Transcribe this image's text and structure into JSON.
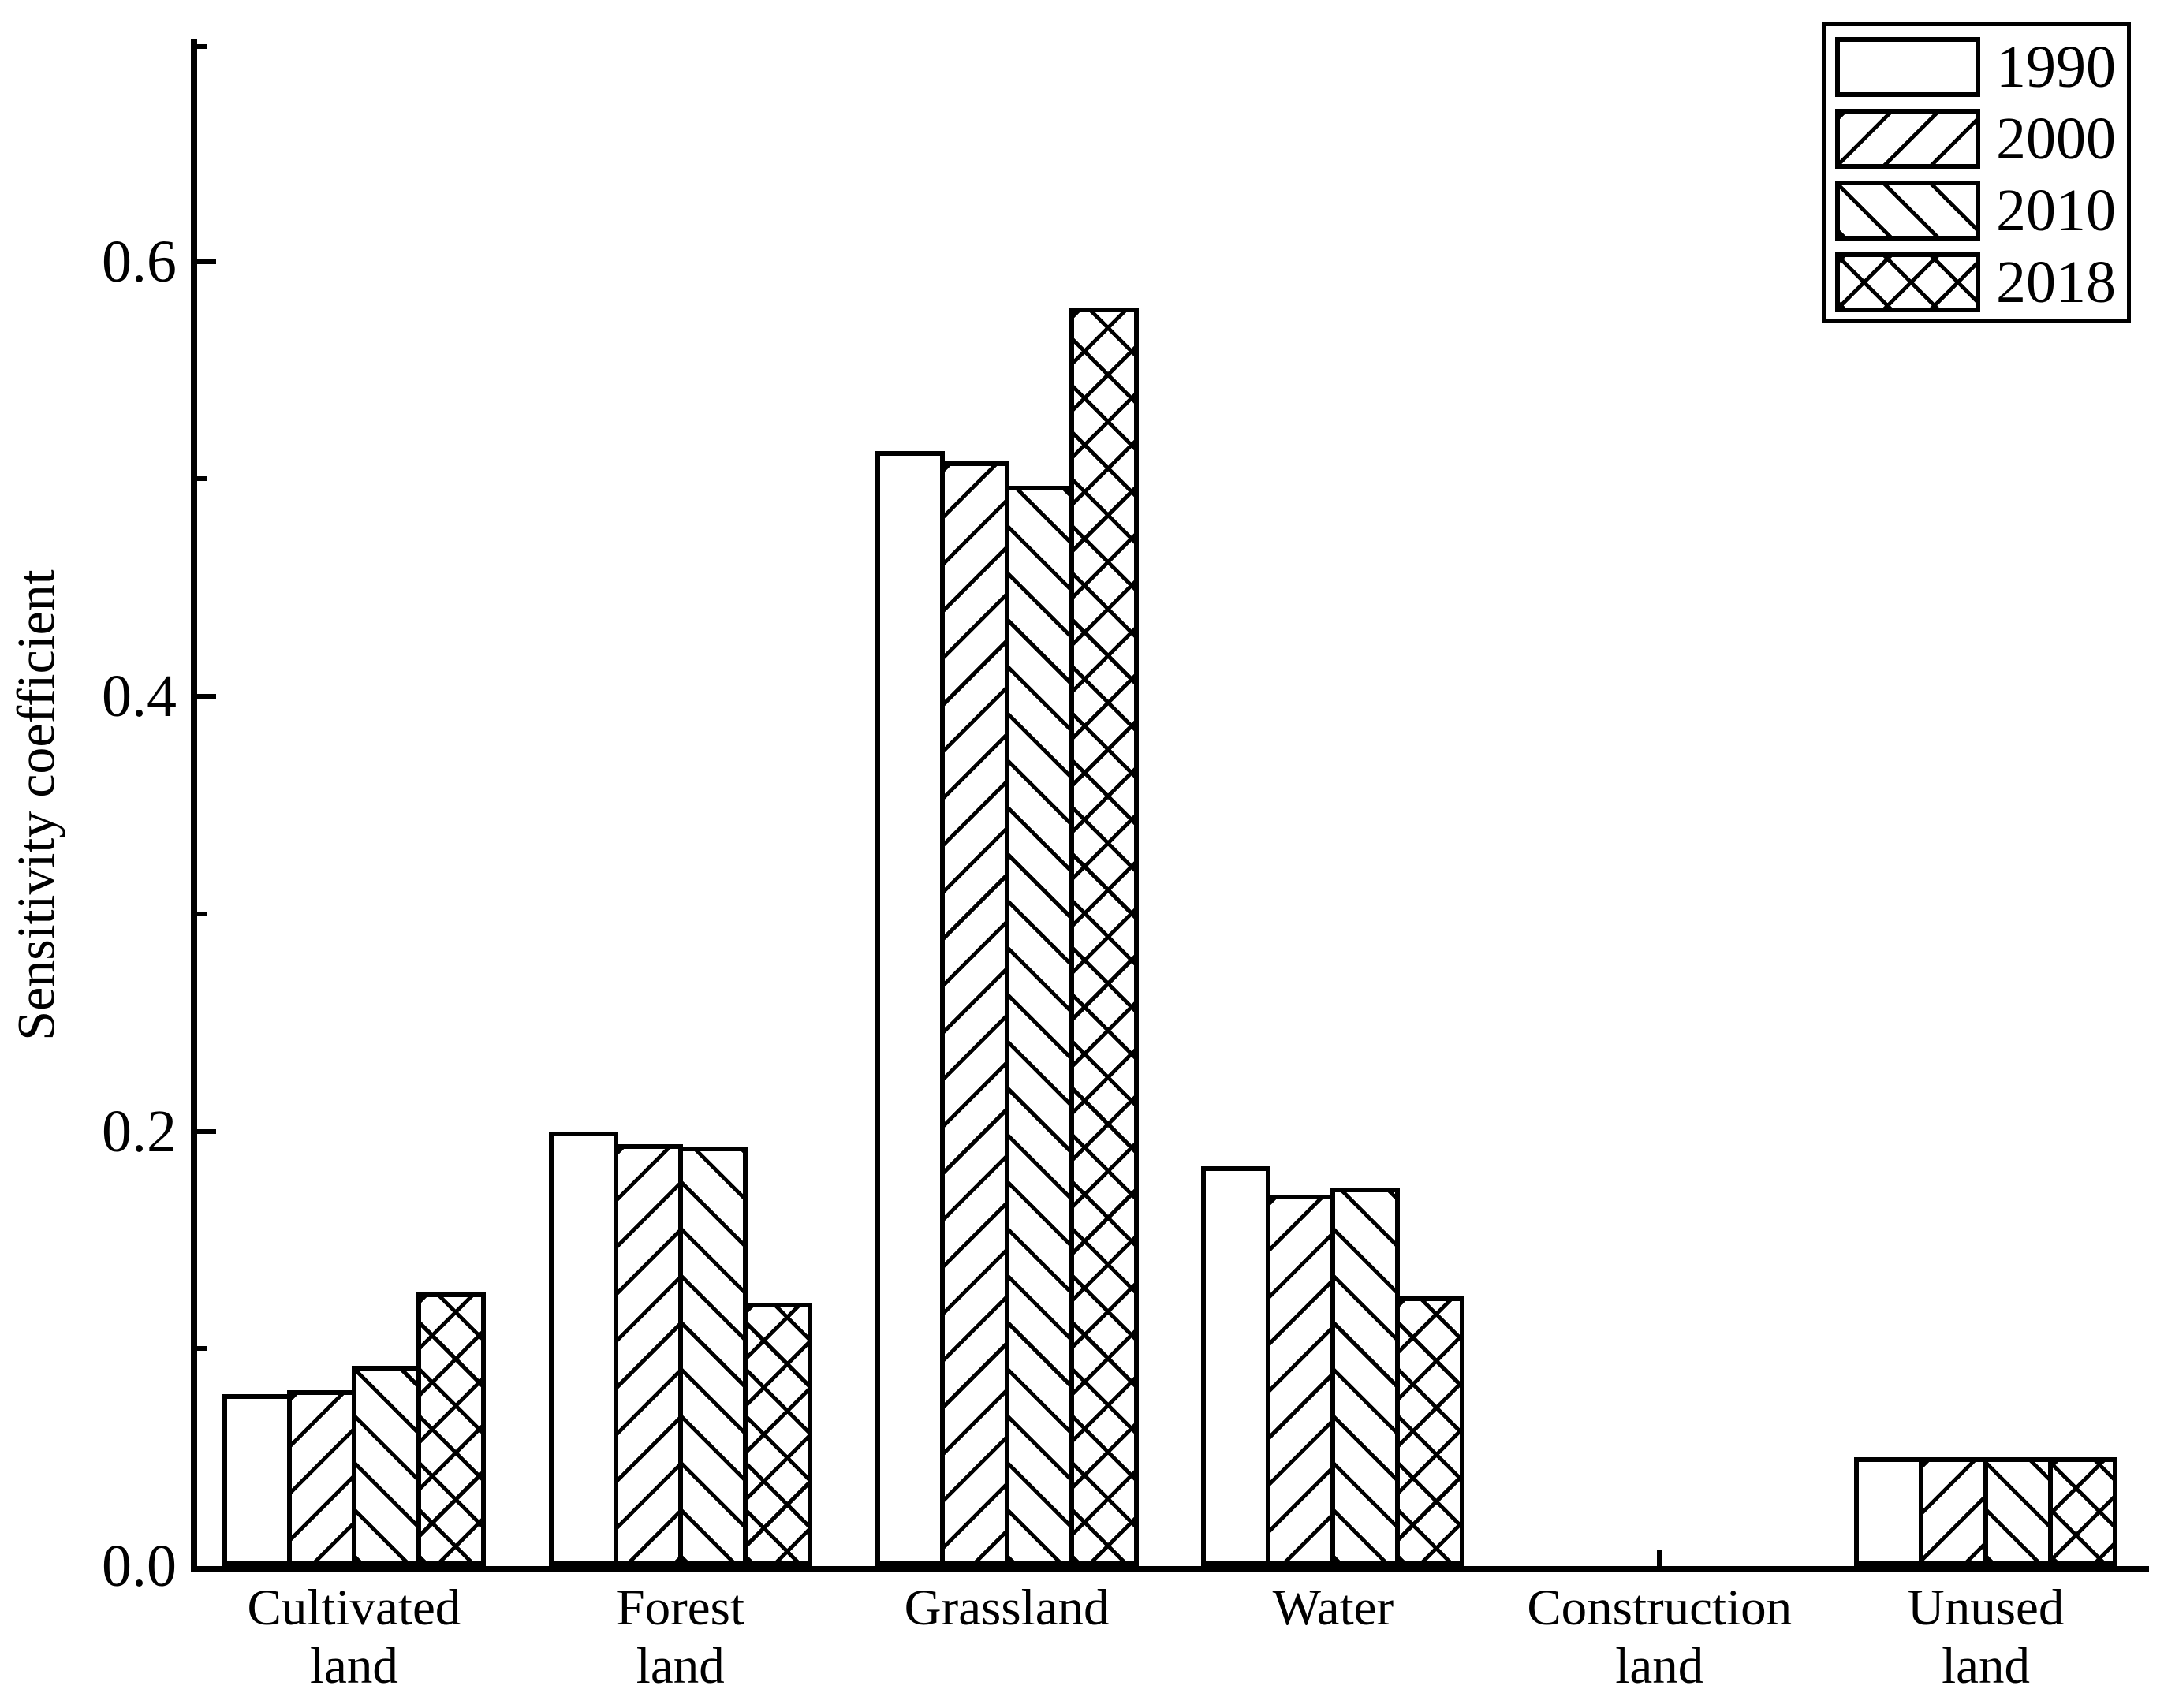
{
  "chart_data": {
    "type": "bar",
    "title": "",
    "ylabel": "Sensitivity coefficient",
    "xlabel": "",
    "grid": false,
    "legend_position": "top-right",
    "bar_fill_color": "#ffffff",
    "line_color": "#000000",
    "ylim": [
      0,
      0.7
    ],
    "yticks": [
      {
        "value": 0.0,
        "label": "0.0"
      },
      {
        "value": 0.2,
        "label": "0.2"
      },
      {
        "value": 0.4,
        "label": "0.4"
      },
      {
        "value": 0.6,
        "label": "0.6"
      }
    ],
    "minor_yticks": [
      0.1,
      0.3,
      0.5,
      0.7
    ],
    "categories": [
      {
        "name": "Cultivated land",
        "lines": [
          "Cultivated",
          "land"
        ]
      },
      {
        "name": "Forest land",
        "lines": [
          "Forest",
          "land"
        ]
      },
      {
        "name": "Grassland",
        "lines": [
          "Grassland"
        ]
      },
      {
        "name": "Water",
        "lines": [
          "Water"
        ]
      },
      {
        "name": "Construction land",
        "lines": [
          "Construction",
          "land"
        ]
      },
      {
        "name": "Unused land",
        "lines": [
          "Unused",
          "land"
        ]
      }
    ],
    "series": [
      {
        "name": "1990",
        "hatch": "none",
        "values": [
          0.079,
          0.2,
          0.513,
          0.184,
          0,
          0.05
        ]
      },
      {
        "name": "2000",
        "hatch": "forward-diagonal",
        "values": [
          0.081,
          0.194,
          0.508,
          0.171,
          0,
          0.05
        ]
      },
      {
        "name": "2010",
        "hatch": "backward-diagonal",
        "values": [
          0.092,
          0.193,
          0.497,
          0.174,
          0,
          0.05
        ]
      },
      {
        "name": "2018",
        "hatch": "crosshatch",
        "values": [
          0.126,
          0.121,
          0.579,
          0.124,
          0,
          0.05
        ]
      }
    ]
  }
}
